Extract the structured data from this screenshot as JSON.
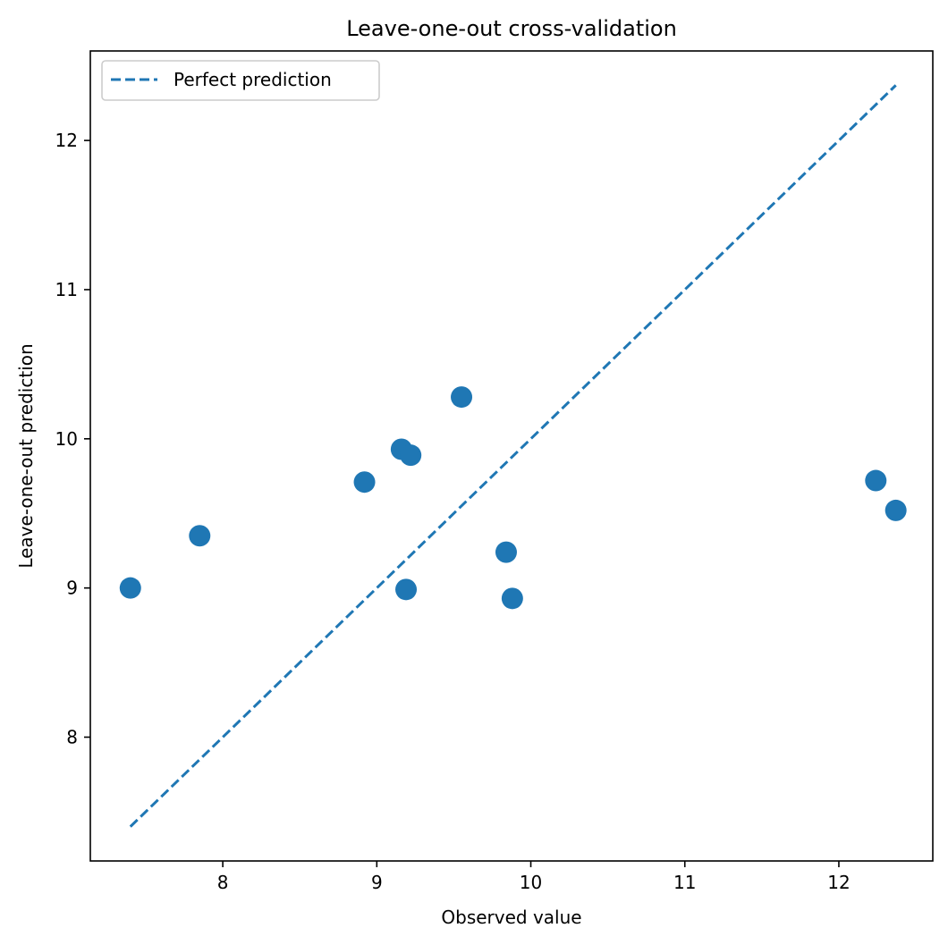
{
  "chart_data": {
    "type": "scatter",
    "title": "Leave-one-out cross-validation",
    "xlabel": "Observed value",
    "ylabel": "Leave-one-out prediction",
    "xlim": [
      7.14,
      12.61
    ],
    "ylim": [
      7.17,
      12.6
    ],
    "xticks": [
      8,
      9,
      10,
      11,
      12
    ],
    "yticks": [
      8,
      9,
      10,
      11,
      12
    ],
    "grid": false,
    "legend_position": "top-left",
    "colors": {
      "points": "#1f77b4",
      "reference_line": "#1f77b4",
      "axes": "#000000",
      "background": "#ffffff",
      "legend_border": "#cccccc"
    },
    "series": [
      {
        "kind": "scatter",
        "x": [
          7.4,
          7.85,
          8.92,
          9.16,
          9.22,
          9.19,
          9.55,
          9.84,
          9.88,
          12.24,
          12.37
        ],
        "y": [
          9.0,
          9.35,
          9.71,
          9.93,
          9.89,
          8.99,
          10.28,
          9.24,
          8.93,
          9.72,
          9.52
        ]
      },
      {
        "kind": "line",
        "name": "Perfect prediction",
        "style": "dashed",
        "x": [
          7.4,
          12.37
        ],
        "y": [
          7.4,
          12.37
        ]
      }
    ]
  }
}
